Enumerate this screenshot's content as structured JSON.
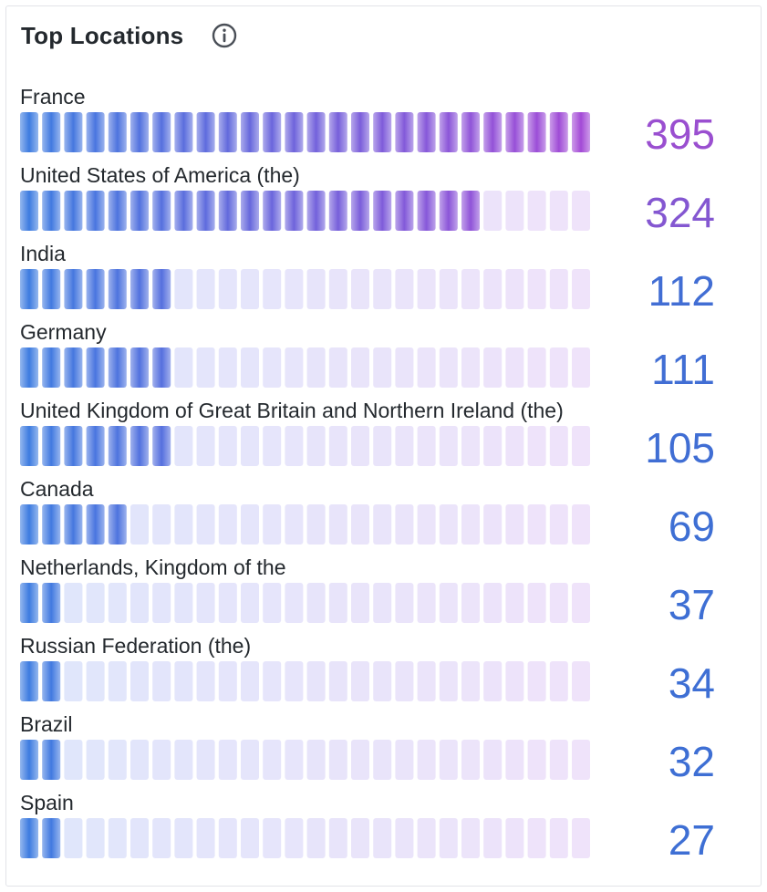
{
  "panel": {
    "title": "Top Locations",
    "info_icon": "info-icon"
  },
  "chart_data": {
    "type": "bar",
    "orientation": "horizontal",
    "style": "lcd-gauge",
    "title": "Top Locations",
    "categories": [
      "France",
      "United States of America (the)",
      "India",
      "Germany",
      "United Kingdom of Great Britain and Northern Ireland (the)",
      "Canada",
      "Netherlands, Kingdom of the",
      "Russian Federation (the)",
      "Brazil",
      "Spain"
    ],
    "values": [
      395,
      324,
      112,
      111,
      105,
      69,
      37,
      34,
      32,
      27
    ],
    "xlim": [
      0,
      395
    ],
    "grid": false,
    "legend": "none",
    "colors": {
      "gradient_start": "#3d7be0",
      "gradient_end": "#a349d6",
      "unlit_start": "#dfe6fb",
      "unlit_end": "#efe3fa",
      "value_low": "#3e6fd4",
      "value_high": "#9a4fd0"
    }
  }
}
